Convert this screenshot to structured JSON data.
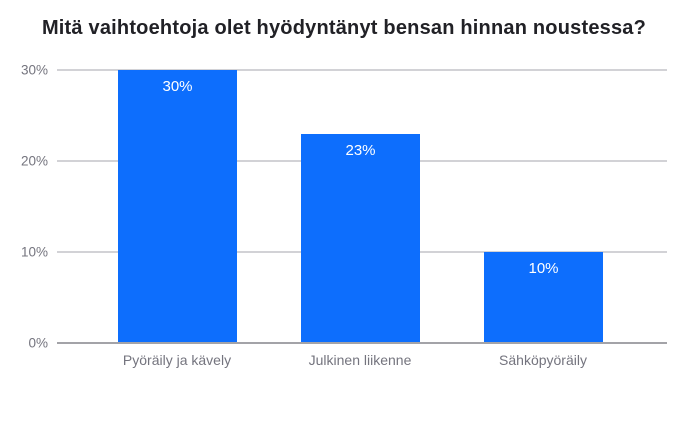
{
  "colors": {
    "bar": "#0d6efd",
    "title_text": "#212126",
    "axis_text": "#74747e",
    "gridline": "#d2d2d6",
    "baseline": "#a3a3a8",
    "value_label_text": "#ffffff",
    "background": "#ffffff"
  },
  "chart_data": {
    "type": "bar",
    "title": "Mitä vaihtoehtoja olet hyödyntänyt bensan hinnan noustessa?",
    "categories": [
      "Pyöräily ja kävely",
      "Julkinen liikenne",
      "Sähköpyöräily"
    ],
    "values": [
      30,
      23,
      10
    ],
    "value_labels": [
      "30%",
      "23%",
      "10%"
    ],
    "xlabel": "",
    "ylabel": "",
    "ylim": [
      0,
      30
    ],
    "yticks": [
      "0%",
      "10%",
      "20%",
      "30%"
    ],
    "grid": true,
    "legend": "none",
    "bar_color": "#0d6efd"
  }
}
